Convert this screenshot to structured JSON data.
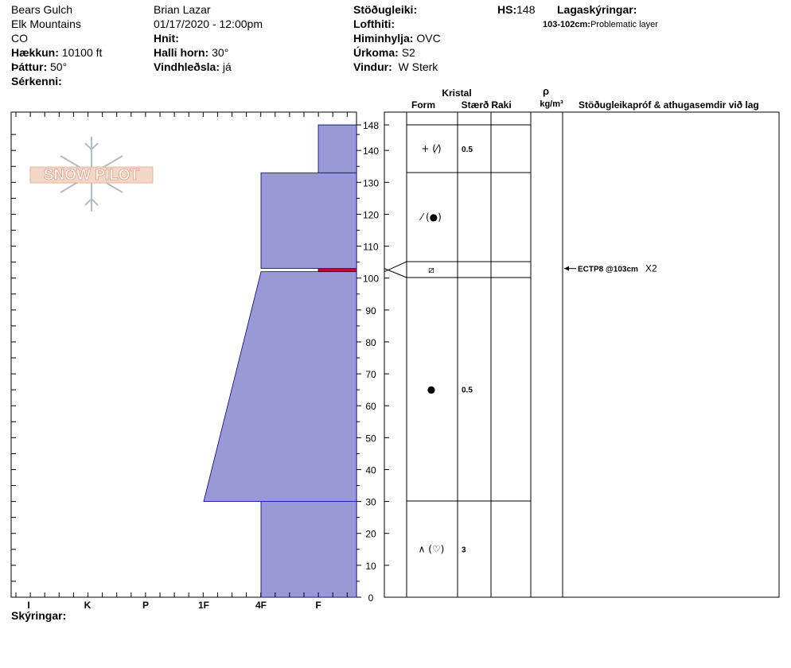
{
  "site": {
    "location": "Bears Gulch",
    "range": "Elk Mountains",
    "state": "CO",
    "elevation_label": "Hækkun:",
    "elevation_value": "10100 ft",
    "aspect_label": "Þáttur:",
    "aspect_value": "50°",
    "features_label": "Sérkenni:"
  },
  "observer": {
    "name": "Brian Lazar",
    "datetime": "01/17/2020 - 12:00pm",
    "coords_label": "Hnit:",
    "slope_label": "Halli horn:",
    "slope_value": "30°",
    "wind_loading_label": "Vindhleðsla:",
    "wind_loading_value": "já"
  },
  "conditions": {
    "stability_label": "Stöðugleiki:",
    "air_temp_label": "Lofthiti:",
    "sky_label": "Himinhylja:",
    "sky_value": "OVC",
    "precip_label": "Úrkoma:",
    "precip_value": "S2",
    "wind_label": "Vindur:",
    "wind_value": "W Sterk",
    "hs_label": "HS:",
    "hs_value": "148"
  },
  "legend": {
    "title": "Lagaskýringar:",
    "layer_range": "103-102cm:",
    "layer_text": "Problematic layer"
  },
  "table_headers": {
    "crystal": "Kristal",
    "form": "Form",
    "size": "Stærð",
    "moisture": "Raki",
    "rho": "ρ",
    "density_unit": "kg/m³",
    "tests": "Stöðugleikapróf & athugasemdir við lag"
  },
  "footer": {
    "notes_label": "Skýringar:"
  },
  "logo_text": "SNOW PILOT",
  "colors": {
    "hardness_fill": "#9999d6",
    "hardness_stroke": "#00008b",
    "problem_layer": "#cc0033"
  },
  "chart_data": {
    "type": "area",
    "description_axis_x": "hand hardness",
    "x_ticks": [
      "I",
      "K",
      "P",
      "1F",
      "4F",
      "F"
    ],
    "y_ticks": [
      0,
      10,
      20,
      30,
      40,
      50,
      60,
      70,
      80,
      90,
      100,
      110,
      120,
      130,
      140,
      148
    ],
    "ylim": [
      0,
      148
    ],
    "hardness_layers": [
      {
        "from": 0,
        "to": 30,
        "hardness_bottom": "4F",
        "hardness_top": "4F"
      },
      {
        "from": 30,
        "to": 102,
        "hardness_bottom": "1F+",
        "hardness_top": "4F"
      },
      {
        "from": 102,
        "to": 103,
        "hardness_bottom": "F",
        "hardness_top": "F"
      },
      {
        "from": 103,
        "to": 133,
        "hardness_bottom": "4F",
        "hardness_top": "4F"
      },
      {
        "from": 133,
        "to": 148,
        "hardness_bottom": "F",
        "hardness_top": "F"
      }
    ],
    "layers": [
      {
        "top": 148,
        "bottom": 133,
        "form": "+ (⁄)",
        "size": "0.5"
      },
      {
        "top": 133,
        "bottom": 105,
        "form": "⁄ (●)",
        "size": ""
      },
      {
        "top": 105,
        "bottom": 100,
        "form": "⧄",
        "size": ""
      },
      {
        "top": 100,
        "bottom": 30,
        "form": "●",
        "size": "0.5"
      },
      {
        "top": 30,
        "bottom": 0,
        "form": "∧ (♡)",
        "size": "3"
      }
    ],
    "tests": [
      {
        "depth": 103,
        "label": "ECTP8 @103cm",
        "extra": "X2"
      }
    ]
  }
}
